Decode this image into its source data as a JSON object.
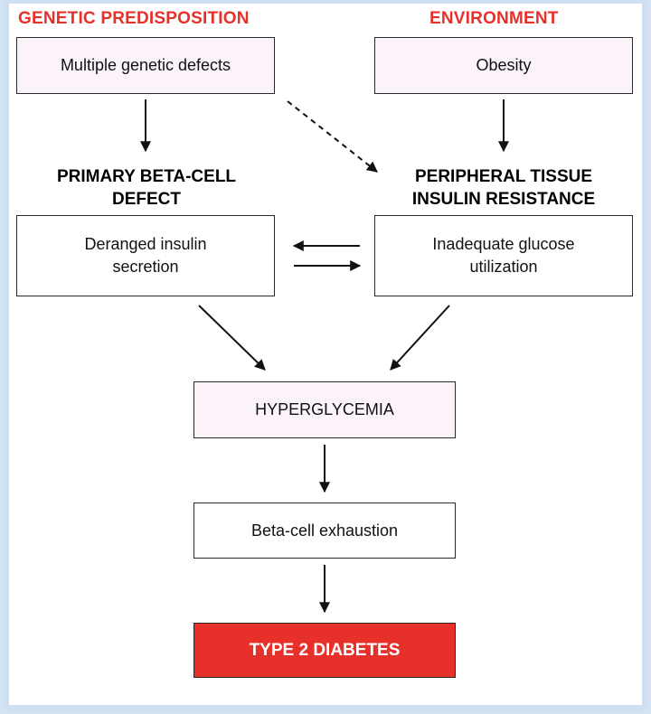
{
  "headings": {
    "genetic": "GENETIC PREDISPOSITION",
    "environment": "ENVIRONMENT",
    "beta_cell_line1": "PRIMARY BETA-CELL",
    "beta_cell_line2": "DEFECT",
    "peripheral_line1": "PERIPHERAL TISSUE",
    "peripheral_line2": "INSULIN RESISTANCE"
  },
  "boxes": {
    "genetic_defects": "Multiple genetic defects",
    "obesity": "Obesity",
    "insulin_secretion_line1": "Deranged insulin",
    "insulin_secretion_line2": "secretion",
    "glucose_utilization_line1": "Inadequate glucose",
    "glucose_utilization_line2": "utilization",
    "hyperglycemia": "HYPERGLYCEMIA",
    "beta_exhaustion": "Beta-cell exhaustion",
    "type2_diabetes": "TYPE 2 DIABETES"
  },
  "colors": {
    "accent_red": "#e8302a",
    "box_pink": "#fbf2fa",
    "background_blue": "#d6e4f3"
  }
}
